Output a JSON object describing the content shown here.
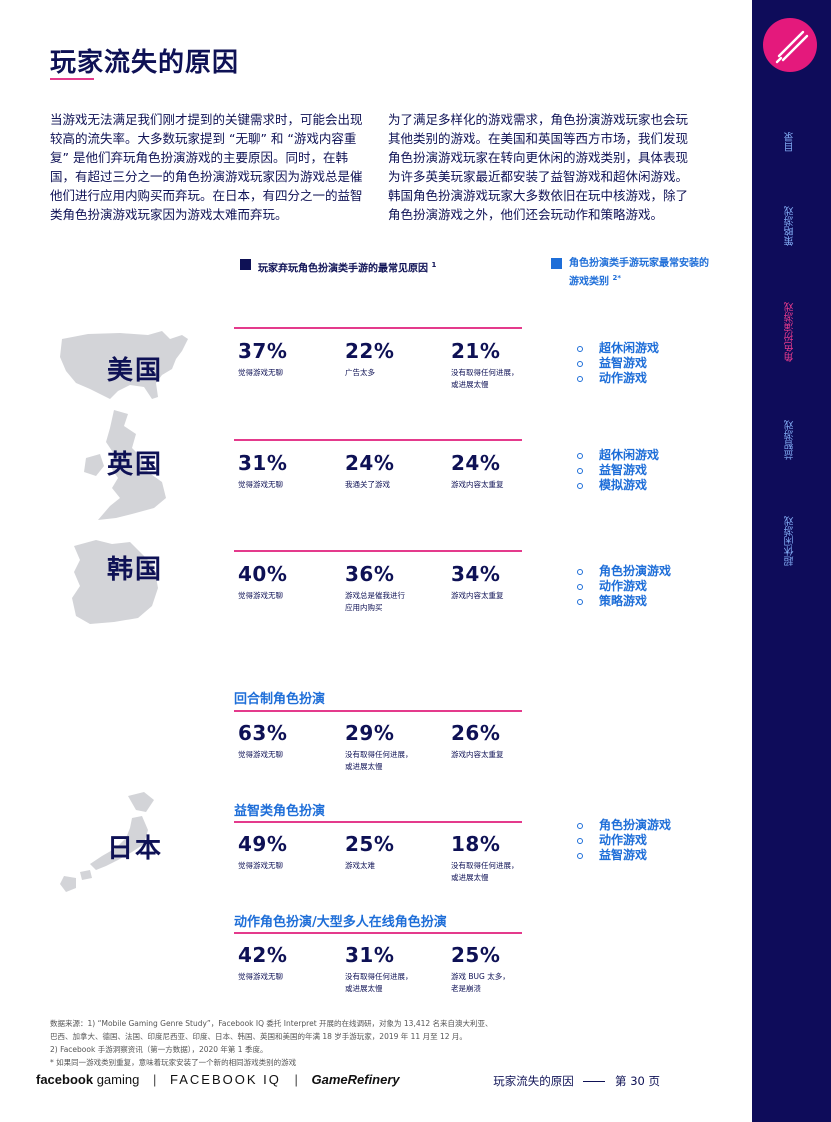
{
  "title": "玩家流失的原因",
  "intro": {
    "left": "当游戏无法满足我们刚才提到的关键需求时，可能会出现较高的流失率。大多数玩家提到 “无聊” 和 “游戏内容重复” 是他们弃玩角色扮演游戏的主要原因。同时，在韩国，有超过三分之一的角色扮演游戏玩家因为游戏总是催他们进行应用内购买而弃玩。在日本，有四分之一的益智类角色扮演游戏玩家因为游戏太难而弃玩。",
    "right": "为了满足多样化的游戏需求，角色扮演游戏玩家也会玩其他类别的游戏。在美国和英国等西方市场，我们发现角色扮演游戏玩家在转向更休闲的游戏类别，具体表现为许多英美玩家最近都安装了益智游戏和超休闲游戏。韩国角色扮演游戏玩家大多数依旧在玩中核游戏，除了角色扮演游戏之外，他们还会玩动作和策略游戏。"
  },
  "legend": {
    "reasons": "玩家弃玩角色扮演类手游的最常见原因",
    "reasons_sup": "1",
    "installed": "角色扮演类手游玩家最常安装的游戏类别",
    "installed_sup": "2*"
  },
  "countries": [
    {
      "name": "美国",
      "stats": [
        {
          "pct": "37%",
          "label": "觉得游戏无聊"
        },
        {
          "pct": "22%",
          "label": "广告太多"
        },
        {
          "pct": "21%",
          "label": "没有取得任何进展，\n或进展太慢"
        }
      ],
      "games": [
        "超休闲游戏",
        "益智游戏",
        "动作游戏"
      ]
    },
    {
      "name": "英国",
      "stats": [
        {
          "pct": "31%",
          "label": "觉得游戏无聊"
        },
        {
          "pct": "24%",
          "label": "我通关了游戏"
        },
        {
          "pct": "24%",
          "label": "游戏内容太重复"
        }
      ],
      "games": [
        "超休闲游戏",
        "益智游戏",
        "模拟游戏"
      ]
    },
    {
      "name": "韩国",
      "stats": [
        {
          "pct": "40%",
          "label": "觉得游戏无聊"
        },
        {
          "pct": "36%",
          "label": "游戏总是催我进行\n应用内购买"
        },
        {
          "pct": "34%",
          "label": "游戏内容太重复"
        }
      ],
      "games": [
        "角色扮演游戏",
        "动作游戏",
        "策略游戏"
      ]
    }
  ],
  "japan": {
    "name": "日本",
    "games": [
      "角色扮演游戏",
      "动作游戏",
      "益智游戏"
    ],
    "segments": [
      {
        "heading": "回合制角色扮演",
        "stats": [
          {
            "pct": "63%",
            "label": "觉得游戏无聊"
          },
          {
            "pct": "29%",
            "label": "没有取得任何进展，\n或进展太慢"
          },
          {
            "pct": "26%",
            "label": "游戏内容太重复"
          }
        ]
      },
      {
        "heading": "益智类角色扮演",
        "stats": [
          {
            "pct": "49%",
            "label": "觉得游戏无聊"
          },
          {
            "pct": "25%",
            "label": "游戏太难"
          },
          {
            "pct": "18%",
            "label": "没有取得任何进展，\n或进展太慢"
          }
        ]
      },
      {
        "heading": "动作角色扮演/大型多人在线角色扮演",
        "stats": [
          {
            "pct": "42%",
            "label": "觉得游戏无聊"
          },
          {
            "pct": "31%",
            "label": "没有取得任何进展，\n或进展太慢"
          },
          {
            "pct": "25%",
            "label": "游戏 BUG 太多，\n老是崩溃"
          }
        ]
      }
    ]
  },
  "footnotes": [
    "数据来源：1) “Mobile Gaming Genre Study”，Facebook IQ 委托 Interpret 开展的在线调研，对象为 13,412 名来自澳大利亚、",
    "巴西、加拿大、德国、法国、印度尼西亚、印度、日本、韩国、英国和美国的年满 18 岁手游玩家，2019 年 11 月至 12 月。",
    "2) Facebook 手游洞察资讯（第一方数据），2020 年第 1 季度。",
    "* 如果同一游戏类别重复，意味着玩家安装了一个新的相同游戏类别的游戏"
  ],
  "footer": {
    "brand_facebook": "facebook",
    "brand_gaming": "gaming",
    "brand_iq": "FACEBOOK IQ",
    "brand_gamerefinery": "GameRefinery",
    "separator": "|",
    "section": "玩家流失的原因",
    "page": "第 30 页"
  },
  "nav": [
    {
      "label": "目录",
      "active": false
    },
    {
      "label": "策略游戏",
      "active": false
    },
    {
      "label": "角色扮演游戏",
      "active": true
    },
    {
      "label": "益智游戏",
      "active": false
    },
    {
      "label": "超休闲游戏",
      "active": false
    }
  ],
  "colors": {
    "navy": "#0e1155",
    "accent_pink": "#e43a8c",
    "accent_blue": "#1e6ed8",
    "sidebar": "#0e0c5a",
    "map_gray": "#d3d4d8"
  },
  "icons": {
    "top_right": "pen-tool-icon"
  }
}
